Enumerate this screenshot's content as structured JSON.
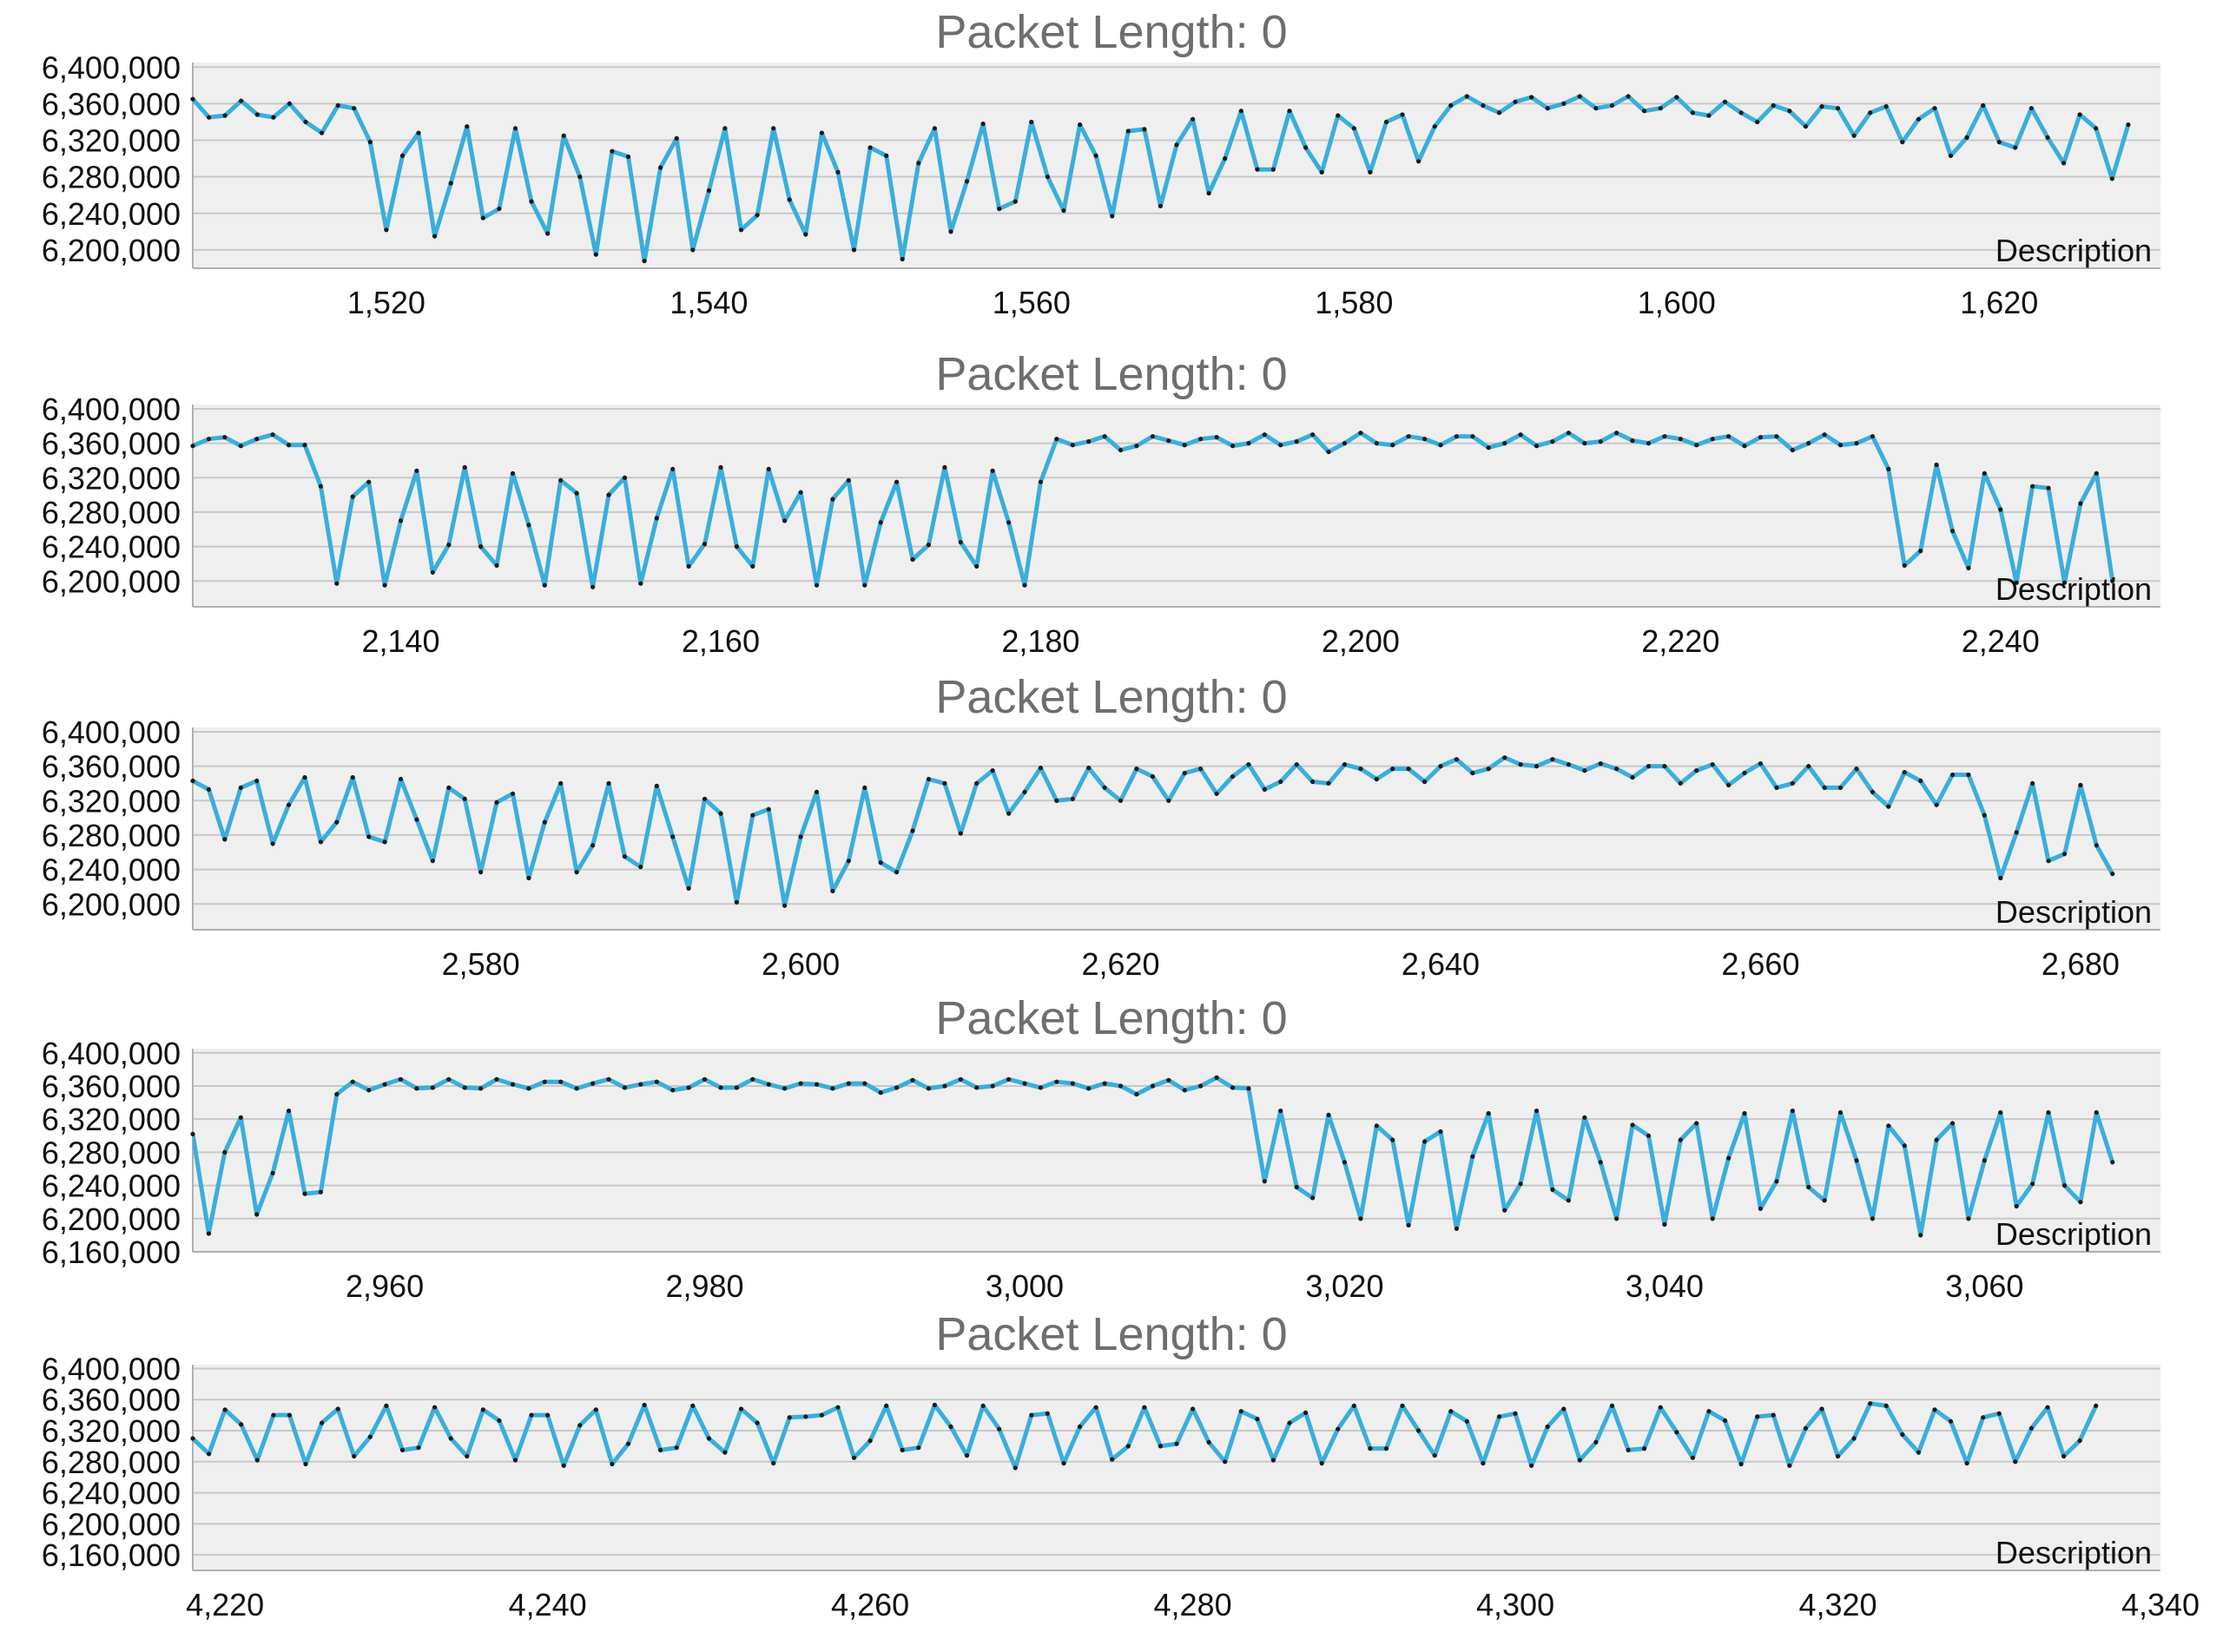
{
  "colors": {
    "line": "#3aaedc",
    "marker": "#1a1a1a",
    "plot_bg": "#efefef",
    "grid": "#c8c8c8",
    "title": "#6e6e6e"
  },
  "chart_data": [
    {
      "type": "line",
      "title": "Packet Length: 0",
      "legend": "Description",
      "legend_position": "bottom-right",
      "grid": true,
      "xlim": [
        1508,
        1630
      ],
      "ylim": [
        6180000,
        6405000
      ],
      "x_ticks": [
        1520,
        1540,
        1560,
        1580,
        1600,
        1620
      ],
      "x_tick_labels": [
        "1,520",
        "1,540",
        "1,560",
        "1,580",
        "1,600",
        "1,620"
      ],
      "y_ticks": [
        6200000,
        6240000,
        6280000,
        6320000,
        6360000,
        6400000
      ],
      "y_tick_labels": [
        "6,200,000",
        "6,240,000",
        "6,280,000",
        "6,320,000",
        "6,360,000",
        "6,400,000"
      ],
      "x_start": 1508,
      "values": [
        6365000,
        6345000,
        6347000,
        6363000,
        6348000,
        6345000,
        6360000,
        6340000,
        6328000,
        6358000,
        6355000,
        6318000,
        6222000,
        6303000,
        6328000,
        6215000,
        6273000,
        6335000,
        6235000,
        6245000,
        6333000,
        6253000,
        6218000,
        6325000,
        6280000,
        6195000,
        6308000,
        6302000,
        6188000,
        6290000,
        6322000,
        6200000,
        6265000,
        6333000,
        6222000,
        6238000,
        6333000,
        6255000,
        6217000,
        6328000,
        6285000,
        6200000,
        6312000,
        6303000,
        6190000,
        6295000,
        6333000,
        6220000,
        6275000,
        6338000,
        6245000,
        6253000,
        6340000,
        6280000,
        6243000,
        6337000,
        6303000,
        6237000,
        6330000,
        6332000,
        6248000,
        6315000,
        6343000,
        6262000,
        6300000,
        6352000,
        6288000,
        6288000,
        6352000,
        6312000,
        6285000,
        6347000,
        6333000,
        6285000,
        6340000,
        6348000,
        6297000,
        6335000,
        6358000,
        6368000,
        6358000,
        6350000,
        6362000,
        6367000,
        6355000,
        6360000,
        6368000,
        6355000,
        6358000,
        6368000,
        6352000,
        6355000,
        6367000,
        6350000,
        6347000,
        6362000,
        6350000,
        6340000,
        6358000,
        6352000,
        6335000,
        6357000,
        6355000,
        6325000,
        6350000,
        6357000,
        6318000,
        6343000,
        6355000,
        6303000,
        6323000,
        6358000,
        6318000,
        6312000,
        6355000,
        6323000,
        6295000,
        6348000,
        6333000,
        6278000,
        6337000
      ]
    },
    {
      "type": "line",
      "title": "Packet Length: 0",
      "legend": "Description",
      "legend_position": "bottom-right",
      "grid": true,
      "xlim": [
        2127,
        2250
      ],
      "ylim": [
        6170000,
        6405000
      ],
      "x_ticks": [
        2140,
        2160,
        2180,
        2200,
        2220,
        2240
      ],
      "x_tick_labels": [
        "2,140",
        "2,160",
        "2,180",
        "2,200",
        "2,220",
        "2,240"
      ],
      "y_ticks": [
        6200000,
        6240000,
        6280000,
        6320000,
        6360000,
        6400000
      ],
      "y_tick_labels": [
        "6,200,000",
        "6,240,000",
        "6,280,000",
        "6,320,000",
        "6,360,000",
        "6,400,000"
      ],
      "x_start": 2127,
      "values": [
        6357000,
        6365000,
        6367000,
        6357000,
        6365000,
        6370000,
        6358000,
        6358000,
        6310000,
        6197000,
        6298000,
        6315000,
        6195000,
        6270000,
        6328000,
        6210000,
        6242000,
        6332000,
        6240000,
        6218000,
        6325000,
        6265000,
        6195000,
        6317000,
        6302000,
        6193000,
        6300000,
        6320000,
        6197000,
        6273000,
        6330000,
        6217000,
        6243000,
        6332000,
        6240000,
        6217000,
        6330000,
        6270000,
        6303000,
        6195000,
        6295000,
        6317000,
        6195000,
        6268000,
        6315000,
        6225000,
        6242000,
        6332000,
        6245000,
        6217000,
        6328000,
        6268000,
        6195000,
        6315000,
        6365000,
        6358000,
        6362000,
        6368000,
        6352000,
        6357000,
        6368000,
        6363000,
        6358000,
        6365000,
        6367000,
        6357000,
        6360000,
        6370000,
        6358000,
        6362000,
        6370000,
        6350000,
        6360000,
        6372000,
        6360000,
        6358000,
        6368000,
        6365000,
        6358000,
        6368000,
        6368000,
        6355000,
        6360000,
        6370000,
        6357000,
        6362000,
        6372000,
        6360000,
        6362000,
        6372000,
        6363000,
        6360000,
        6368000,
        6365000,
        6358000,
        6365000,
        6368000,
        6357000,
        6367000,
        6368000,
        6352000,
        6360000,
        6370000,
        6358000,
        6360000,
        6368000,
        6330000,
        6218000,
        6235000,
        6335000,
        6258000,
        6215000,
        6325000,
        6283000,
        6198000,
        6310000,
        6308000,
        6198000,
        6290000,
        6325000,
        6200000
      ]
    },
    {
      "type": "line",
      "title": "Packet Length: 0",
      "legend": "Description",
      "legend_position": "bottom-right",
      "grid": true,
      "xlim": [
        2562,
        2685
      ],
      "ylim": [
        6170000,
        6405000
      ],
      "x_ticks": [
        2580,
        2600,
        2620,
        2640,
        2660,
        2680
      ],
      "x_tick_labels": [
        "2,580",
        "2,600",
        "2,620",
        "2,640",
        "2,660",
        "2,680"
      ],
      "y_ticks": [
        6200000,
        6240000,
        6280000,
        6320000,
        6360000,
        6400000
      ],
      "y_tick_labels": [
        "6,200,000",
        "6,240,000",
        "6,280,000",
        "6,320,000",
        "6,360,000",
        "6,400,000"
      ],
      "x_start": 2562,
      "values": [
        6343000,
        6333000,
        6275000,
        6335000,
        6343000,
        6270000,
        6315000,
        6347000,
        6272000,
        6295000,
        6347000,
        6278000,
        6272000,
        6345000,
        6298000,
        6250000,
        6335000,
        6322000,
        6237000,
        6318000,
        6328000,
        6230000,
        6295000,
        6340000,
        6237000,
        6268000,
        6340000,
        6255000,
        6243000,
        6337000,
        6278000,
        6218000,
        6322000,
        6305000,
        6202000,
        6303000,
        6310000,
        6198000,
        6278000,
        6330000,
        6215000,
        6250000,
        6335000,
        6248000,
        6237000,
        6285000,
        6345000,
        6340000,
        6282000,
        6340000,
        6355000,
        6305000,
        6330000,
        6358000,
        6320000,
        6322000,
        6358000,
        6335000,
        6320000,
        6357000,
        6348000,
        6320000,
        6352000,
        6357000,
        6328000,
        6348000,
        6362000,
        6333000,
        6342000,
        6362000,
        6342000,
        6340000,
        6362000,
        6357000,
        6345000,
        6357000,
        6357000,
        6342000,
        6360000,
        6368000,
        6352000,
        6357000,
        6370000,
        6362000,
        6360000,
        6368000,
        6362000,
        6355000,
        6363000,
        6357000,
        6347000,
        6360000,
        6360000,
        6340000,
        6355000,
        6362000,
        6338000,
        6352000,
        6363000,
        6335000,
        6340000,
        6360000,
        6335000,
        6335000,
        6357000,
        6330000,
        6313000,
        6353000,
        6343000,
        6315000,
        6350000,
        6350000,
        6303000,
        6230000,
        6283000,
        6340000,
        6250000,
        6258000,
        6338000,
        6268000,
        6235000
      ]
    },
    {
      "type": "line",
      "title": "Packet Length: 0",
      "legend": "Description",
      "legend_position": "bottom-right",
      "grid": true,
      "xlim": [
        2948,
        3071
      ],
      "ylim": [
        6160000,
        6405000
      ],
      "x_ticks": [
        2960,
        2980,
        3000,
        3020,
        3040,
        3060
      ],
      "x_tick_labels": [
        "2,960",
        "2,980",
        "3,000",
        "3,020",
        "3,040",
        "3,060"
      ],
      "y_ticks": [
        6160000,
        6200000,
        6240000,
        6280000,
        6320000,
        6360000,
        6400000
      ],
      "y_tick_labels": [
        "6,160,000",
        "6,200,000",
        "6,240,000",
        "6,280,000",
        "6,320,000",
        "6,360,000",
        "6,400,000"
      ],
      "x_start": 2948,
      "values": [
        6302000,
        6182000,
        6280000,
        6322000,
        6205000,
        6255000,
        6330000,
        6230000,
        6232000,
        6350000,
        6365000,
        6355000,
        6362000,
        6368000,
        6357000,
        6358000,
        6368000,
        6358000,
        6357000,
        6368000,
        6362000,
        6357000,
        6365000,
        6365000,
        6357000,
        6363000,
        6368000,
        6358000,
        6362000,
        6365000,
        6355000,
        6358000,
        6368000,
        6358000,
        6358000,
        6368000,
        6362000,
        6357000,
        6363000,
        6362000,
        6357000,
        6363000,
        6363000,
        6352000,
        6358000,
        6367000,
        6357000,
        6360000,
        6368000,
        6358000,
        6360000,
        6368000,
        6363000,
        6358000,
        6365000,
        6363000,
        6357000,
        6363000,
        6360000,
        6350000,
        6360000,
        6367000,
        6355000,
        6360000,
        6370000,
        6358000,
        6357000,
        6245000,
        6330000,
        6238000,
        6225000,
        6325000,
        6268000,
        6200000,
        6312000,
        6295000,
        6192000,
        6293000,
        6305000,
        6188000,
        6275000,
        6327000,
        6210000,
        6242000,
        6330000,
        6235000,
        6222000,
        6322000,
        6268000,
        6200000,
        6313000,
        6300000,
        6193000,
        6295000,
        6315000,
        6200000,
        6273000,
        6327000,
        6212000,
        6245000,
        6330000,
        6238000,
        6222000,
        6328000,
        6270000,
        6200000,
        6312000,
        6288000,
        6180000,
        6295000,
        6315000,
        6200000,
        6270000,
        6328000,
        6215000,
        6242000,
        6328000,
        6240000,
        6220000,
        6328000,
        6268000
      ]
    },
    {
      "type": "line",
      "title": "Packet Length: 0",
      "legend": "Description",
      "legend_position": "bottom-right",
      "grid": true,
      "xlim": [
        4218,
        4340
      ],
      "ylim": [
        6140000,
        6405000
      ],
      "x_ticks": [
        4220,
        4240,
        4260,
        4280,
        4300,
        4320,
        4340
      ],
      "x_tick_labels": [
        "4,220",
        "4,240",
        "4,260",
        "4,280",
        "4,300",
        "4,320",
        "4,340"
      ],
      "y_ticks": [
        6160000,
        6200000,
        6240000,
        6280000,
        6320000,
        6360000,
        6400000
      ],
      "y_tick_labels": [
        "6,160,000",
        "6,200,000",
        "6,240,000",
        "6,280,000",
        "6,320,000",
        "6,360,000",
        "6,400,000"
      ],
      "x_start": 4218,
      "values": [
        6310000,
        6290000,
        6347000,
        6328000,
        6282000,
        6340000,
        6340000,
        6277000,
        6330000,
        6348000,
        6287000,
        6312000,
        6352000,
        6295000,
        6298000,
        6350000,
        6310000,
        6287000,
        6347000,
        6333000,
        6282000,
        6340000,
        6340000,
        6275000,
        6327000,
        6347000,
        6277000,
        6303000,
        6353000,
        6295000,
        6298000,
        6352000,
        6310000,
        6292000,
        6348000,
        6330000,
        6278000,
        6337000,
        6338000,
        6340000,
        6350000,
        6285000,
        6307000,
        6352000,
        6295000,
        6298000,
        6353000,
        6325000,
        6288000,
        6352000,
        6322000,
        6272000,
        6340000,
        6342000,
        6278000,
        6325000,
        6350000,
        6283000,
        6300000,
        6350000,
        6300000,
        6303000,
        6348000,
        6305000,
        6280000,
        6345000,
        6335000,
        6282000,
        6330000,
        6343000,
        6278000,
        6322000,
        6352000,
        6297000,
        6297000,
        6352000,
        6320000,
        6288000,
        6345000,
        6332000,
        6278000,
        6338000,
        6342000,
        6275000,
        6325000,
        6348000,
        6282000,
        6305000,
        6352000,
        6295000,
        6297000,
        6350000,
        6318000,
        6285000,
        6345000,
        6333000,
        6277000,
        6338000,
        6340000,
        6275000,
        6323000,
        6348000,
        6287000,
        6310000,
        6355000,
        6352000,
        6315000,
        6292000,
        6347000,
        6332000,
        6278000,
        6337000,
        6342000,
        6280000,
        6323000,
        6350000,
        6287000,
        6307000,
        6352000
      ]
    }
  ]
}
